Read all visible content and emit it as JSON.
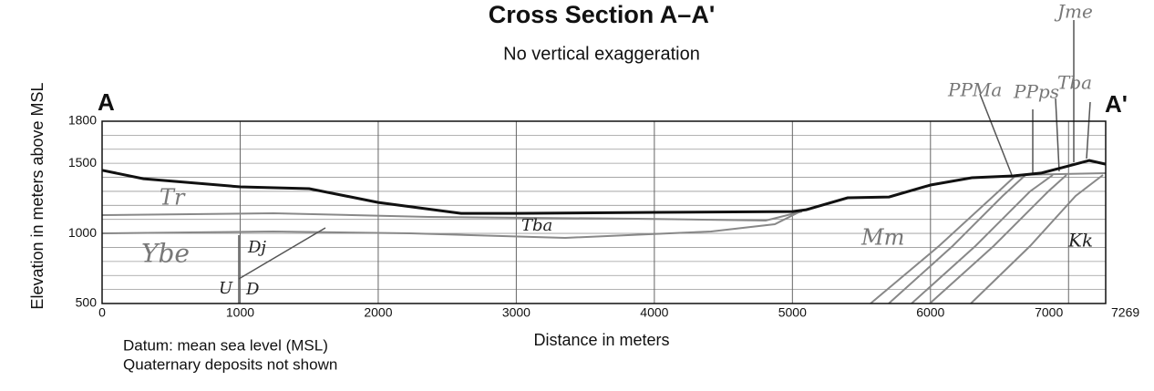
{
  "chart_data": {
    "type": "line",
    "title": "Cross Section A–A'",
    "subtitle": "No vertical exaggeration",
    "x_label": "Distance in meters",
    "y_label": "Elevation in meters above MSL",
    "notes": [
      "Datum: mean sea level (MSL)",
      "Quaternary deposits not shown"
    ],
    "ends": [
      "A",
      "A'"
    ],
    "x": [
      0,
      300,
      1000,
      1500,
      2000,
      2400,
      2600,
      3000,
      4000,
      5000,
      5100,
      5400,
      5700,
      6000,
      6300,
      6600,
      6800,
      7000,
      7150,
      7269
    ],
    "values": [
      1450,
      1390,
      1332,
      1319,
      1221,
      1169,
      1143,
      1143,
      1150,
      1156,
      1169,
      1254,
      1260,
      1345,
      1397,
      1410,
      1430,
      1481,
      1520,
      1494
    ],
    "color": "#111111",
    "xlim": [
      0,
      7269
    ],
    "xticks": [
      0,
      1000,
      2000,
      3000,
      4000,
      5000,
      6000,
      7000,
      7269
    ],
    "ylim": [
      500,
      1800
    ],
    "yticks": [
      500,
      1000,
      1500,
      1800
    ],
    "ygrid": [
      500,
      600,
      700,
      800,
      900,
      1000,
      1100,
      1200,
      1300,
      1400,
      1500,
      1600,
      1700,
      1800
    ],
    "grid": true
  },
  "units": [
    "Tr",
    "Ybe",
    "Dj",
    "U",
    "D",
    "Tba",
    "Mm",
    "Kk",
    "PPMa",
    "PPps",
    "Tba",
    "Jme"
  ]
}
